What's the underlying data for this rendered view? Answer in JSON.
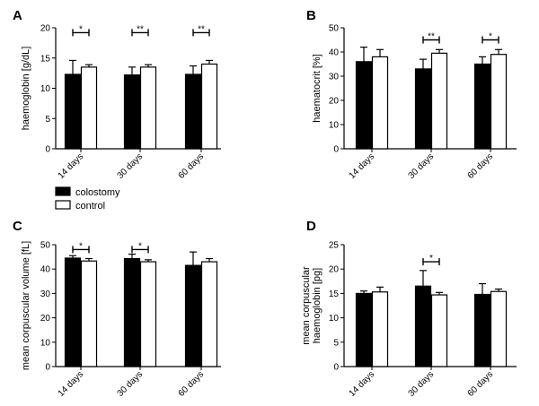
{
  "colors": {
    "colostomy": "#000000",
    "control": "#ffffff",
    "axis": "#000000"
  },
  "legend": [
    {
      "key": "colostomy",
      "label": "colostomy"
    },
    {
      "key": "control",
      "label": "control"
    }
  ],
  "chart_data": [
    {
      "panel": "A",
      "type": "bar",
      "ylabel": "haemoglobin [g/dL]",
      "ylim": [
        0,
        20
      ],
      "yticks": [
        "0",
        "5",
        "10",
        "15",
        "20"
      ],
      "categories": [
        "14 days",
        "30 days",
        "60 days"
      ],
      "series": [
        {
          "name": "colostomy",
          "values": [
            12.3,
            12.2,
            12.3
          ],
          "errors": [
            2.3,
            1.3,
            1.4
          ]
        },
        {
          "name": "control",
          "values": [
            13.5,
            13.5,
            14.0
          ],
          "errors": [
            0.4,
            0.4,
            0.6
          ]
        }
      ],
      "significance": [
        {
          "category": 0,
          "label": "*",
          "level": 19.2
        },
        {
          "category": 1,
          "label": "**",
          "level": 19.2
        },
        {
          "category": 2,
          "label": "**",
          "level": 19.2
        }
      ]
    },
    {
      "panel": "B",
      "type": "bar",
      "ylabel": "haematocrit [%]",
      "ylim": [
        0,
        50
      ],
      "yticks": [
        "0",
        "10",
        "20",
        "30",
        "40",
        "50"
      ],
      "categories": [
        "14 days",
        "30 days",
        "60 days"
      ],
      "series": [
        {
          "name": "colostomy",
          "values": [
            36.0,
            33.0,
            35.0
          ],
          "errors": [
            6.0,
            4.0,
            3.0
          ]
        },
        {
          "name": "control",
          "values": [
            38.0,
            39.5,
            39.0
          ],
          "errors": [
            3.0,
            1.5,
            2.0
          ]
        }
      ],
      "significance": [
        {
          "category": 1,
          "label": "**",
          "level": 45
        },
        {
          "category": 2,
          "label": "*",
          "level": 45
        }
      ]
    },
    {
      "panel": "C",
      "type": "bar",
      "ylabel": "mean corpuscular volume [fL]",
      "ylim": [
        0,
        50
      ],
      "yticks": [
        "0",
        "10",
        "20",
        "30",
        "40",
        "50"
      ],
      "categories": [
        "14 days",
        "30 days",
        "60 days"
      ],
      "series": [
        {
          "name": "colostomy",
          "values": [
            44.5,
            44.3,
            41.5
          ],
          "errors": [
            1.0,
            1.8,
            5.5
          ]
        },
        {
          "name": "control",
          "values": [
            43.3,
            43.0,
            43.0
          ],
          "errors": [
            1.0,
            0.8,
            1.3
          ]
        }
      ],
      "significance": [
        {
          "category": 0,
          "label": "*",
          "level": 48
        },
        {
          "category": 1,
          "label": "*",
          "level": 48
        }
      ]
    },
    {
      "panel": "D",
      "type": "bar",
      "ylabel": "mean corpuscular\nhaemoglobin [pg]",
      "ylim": [
        0,
        25
      ],
      "yticks": [
        "0",
        "5",
        "10",
        "15",
        "20",
        "25"
      ],
      "categories": [
        "14 days",
        "30 days",
        "60 days"
      ],
      "series": [
        {
          "name": "colostomy",
          "values": [
            15.0,
            16.5,
            14.8
          ],
          "errors": [
            0.5,
            3.2,
            2.2
          ]
        },
        {
          "name": "control",
          "values": [
            15.3,
            14.7,
            15.4
          ],
          "errors": [
            1.0,
            0.5,
            0.5
          ]
        }
      ],
      "significance": [
        {
          "category": 1,
          "label": "*",
          "level": 21.5
        }
      ]
    }
  ]
}
